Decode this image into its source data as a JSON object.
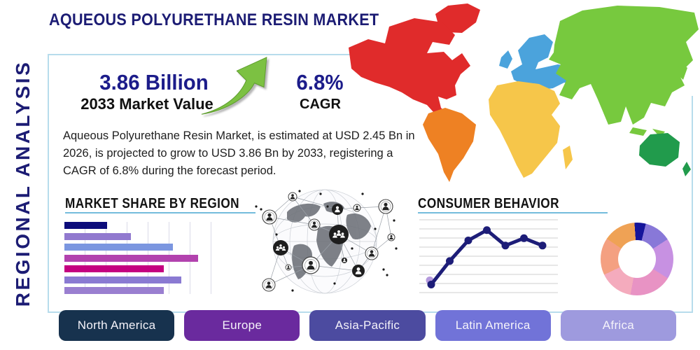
{
  "title": "AQUEOUS POLYURETHANE RESIN MARKET",
  "side_label": "REGIONAL ANALYSIS",
  "stats": {
    "market_value": "3.86 Billion",
    "market_value_caption": "2033 Market Value",
    "cagr_value": "6.8%",
    "cagr_caption": "CAGR"
  },
  "description": "Aqueous Polyurethane Resin Market, is estimated at USD 2.45 Bn in 2026, is projected to grow to USD 3.86 Bn by 2033, registering a CAGR of 6.8% during the forecast period.",
  "section_titles": {
    "bar": "MARKET SHARE BY REGION",
    "line": "CONSUMER BEHAVIOR"
  },
  "accent": {
    "navy": "#1c1c74",
    "underline": "#74bcdc",
    "box_border": "#b7dcec",
    "arrow_green": "#7cc142"
  },
  "region_buttons": [
    {
      "label": "North America",
      "color": "#17324e"
    },
    {
      "label": "Europe",
      "color": "#6a2a9e"
    },
    {
      "label": "Asia-Pacific",
      "color": "#4c4ba0"
    },
    {
      "label": "Latin America",
      "color": "#7173d8"
    },
    {
      "label": "Africa",
      "color": "#9e9ade"
    }
  ],
  "map_colors": {
    "north_america": "#e02b2b",
    "greenland": "#e02b2b",
    "south_america": "#ee8123",
    "europe": "#4ba3dc",
    "africa": "#f6c64a",
    "madagascar": "#f6c64a",
    "asia": "#77c93e",
    "oceania": "#219b4c"
  },
  "chart_data": [
    {
      "type": "bar",
      "title": "MARKET SHARE BY REGION",
      "orientation": "horizontal",
      "categories_visible": false,
      "values": [
        29,
        45,
        73,
        90,
        67,
        79,
        67
      ],
      "unit": "percent of x-axis span",
      "bar_colors": [
        "#0c0c7a",
        "#9179cf",
        "#7b96e0",
        "#b242ae",
        "#c40080",
        "#8a7ad2",
        "#9a7fd0"
      ],
      "grid": "vertical",
      "gridline_count": 7,
      "value_labels": false
    },
    {
      "type": "line",
      "title": "CONSUMER BEHAVIOR",
      "x": [
        1,
        2,
        3,
        4,
        5,
        6,
        7
      ],
      "y": [
        11,
        43,
        71,
        85,
        64,
        74,
        64
      ],
      "ylim": [
        0,
        100
      ],
      "line_color": "#1d1d78",
      "marker": "circle",
      "first_marker_halo_color": "#b49add",
      "grid": "horizontal",
      "gridline_count": 9,
      "axis_labels_visible": false
    },
    {
      "type": "pie",
      "title": "",
      "donut": true,
      "labels_visible": false,
      "values": [
        5,
        12,
        18,
        19,
        15,
        16.5,
        14.5
      ],
      "colors": [
        "#15159b",
        "#8878d8",
        "#c791e2",
        "#e893c4",
        "#f4abbd",
        "#f4a081",
        "#efa255"
      ],
      "start_angle_deg": -4,
      "legend": "none"
    }
  ]
}
